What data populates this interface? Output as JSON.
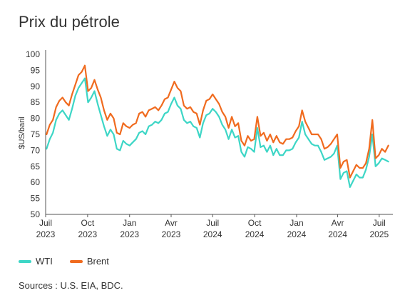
{
  "title": "Prix du pétrole",
  "source": "Sources : U.S. EIA, BDC.",
  "colors": {
    "wti": "#3dd6c6",
    "brent": "#f06b1f",
    "axis": "#555555"
  },
  "chart_data": {
    "type": "line",
    "ylabel": "$US/baril",
    "ylim": [
      50,
      100
    ],
    "yticks": [
      50,
      55,
      60,
      65,
      70,
      75,
      80,
      85,
      90,
      95,
      100
    ],
    "xlim": [
      "2023-07-01",
      "2025-07-31"
    ],
    "xticks": [
      {
        "date": "2023-07-01",
        "month": "Juil",
        "year": "2023"
      },
      {
        "date": "2023-10-01",
        "month": "Oct",
        "year": "2023"
      },
      {
        "date": "2024-01-01",
        "month": "Jan",
        "year": "2023"
      },
      {
        "date": "2024-04-01",
        "month": "Avr",
        "year": "2023"
      },
      {
        "date": "2024-07-01",
        "month": "Juil",
        "year": "2024"
      },
      {
        "date": "2024-10-01",
        "month": "Oct",
        "year": "2024"
      },
      {
        "date": "2025-01-01",
        "month": "Jan",
        "year": "2024"
      },
      {
        "date": "2025-04-01",
        "month": "Avr",
        "year": "2024"
      },
      {
        "date": "2025-07-01",
        "month": "Juil",
        "year": "2025"
      }
    ],
    "series": [
      {
        "name": "WTI",
        "color": "#3dd6c6",
        "points": [
          [
            "2023-07-03",
            70.5
          ],
          [
            "2023-07-10",
            73.5
          ],
          [
            "2023-07-17",
            75.5
          ],
          [
            "2023-07-24",
            79.5
          ],
          [
            "2023-07-31",
            81.5
          ],
          [
            "2023-08-07",
            82.5
          ],
          [
            "2023-08-14",
            81.0
          ],
          [
            "2023-08-21",
            79.5
          ],
          [
            "2023-08-28",
            83.0
          ],
          [
            "2023-09-04",
            87.0
          ],
          [
            "2023-09-11",
            89.5
          ],
          [
            "2023-09-18",
            91.0
          ],
          [
            "2023-09-25",
            92.5
          ],
          [
            "2023-10-02",
            85.0
          ],
          [
            "2023-10-09",
            86.5
          ],
          [
            "2023-10-16",
            88.5
          ],
          [
            "2023-10-23",
            84.5
          ],
          [
            "2023-10-30",
            81.0
          ],
          [
            "2023-11-06",
            77.5
          ],
          [
            "2023-11-13",
            74.5
          ],
          [
            "2023-11-20",
            76.5
          ],
          [
            "2023-11-27",
            75.0
          ],
          [
            "2023-12-04",
            70.5
          ],
          [
            "2023-12-11",
            70.0
          ],
          [
            "2023-12-18",
            73.0
          ],
          [
            "2023-12-25",
            72.0
          ],
          [
            "2024-01-01",
            71.5
          ],
          [
            "2024-01-08",
            72.5
          ],
          [
            "2024-01-15",
            73.5
          ],
          [
            "2024-01-22",
            75.5
          ],
          [
            "2024-01-29",
            76.0
          ],
          [
            "2024-02-05",
            75.0
          ],
          [
            "2024-02-12",
            77.5
          ],
          [
            "2024-02-19",
            78.0
          ],
          [
            "2024-02-26",
            79.0
          ],
          [
            "2024-03-04",
            78.5
          ],
          [
            "2024-03-11",
            79.5
          ],
          [
            "2024-03-18",
            81.5
          ],
          [
            "2024-03-25",
            82.0
          ],
          [
            "2024-04-01",
            84.5
          ],
          [
            "2024-04-08",
            86.5
          ],
          [
            "2024-04-15",
            84.0
          ],
          [
            "2024-04-22",
            83.0
          ],
          [
            "2024-04-29",
            79.5
          ],
          [
            "2024-05-06",
            78.5
          ],
          [
            "2024-05-13",
            79.0
          ],
          [
            "2024-05-20",
            77.5
          ],
          [
            "2024-05-27",
            77.0
          ],
          [
            "2024-06-03",
            74.0
          ],
          [
            "2024-06-10",
            78.5
          ],
          [
            "2024-06-17",
            81.0
          ],
          [
            "2024-06-24",
            81.5
          ],
          [
            "2024-07-01",
            83.0
          ],
          [
            "2024-07-08",
            82.0
          ],
          [
            "2024-07-15",
            80.5
          ],
          [
            "2024-07-22",
            78.0
          ],
          [
            "2024-07-29",
            76.5
          ],
          [
            "2024-08-05",
            73.5
          ],
          [
            "2024-08-12",
            76.5
          ],
          [
            "2024-08-19",
            74.0
          ],
          [
            "2024-08-26",
            74.5
          ],
          [
            "2024-09-02",
            69.5
          ],
          [
            "2024-09-09",
            68.0
          ],
          [
            "2024-09-16",
            71.0
          ],
          [
            "2024-09-23",
            70.5
          ],
          [
            "2024-09-30",
            69.5
          ],
          [
            "2024-10-07",
            77.0
          ],
          [
            "2024-10-14",
            71.0
          ],
          [
            "2024-10-21",
            71.5
          ],
          [
            "2024-10-28",
            69.5
          ],
          [
            "2024-11-04",
            71.5
          ],
          [
            "2024-11-11",
            68.5
          ],
          [
            "2024-11-18",
            70.5
          ],
          [
            "2024-11-25",
            68.5
          ],
          [
            "2024-12-02",
            68.5
          ],
          [
            "2024-12-09",
            70.0
          ],
          [
            "2024-12-16",
            70.0
          ],
          [
            "2024-12-23",
            70.5
          ],
          [
            "2024-12-30",
            72.5
          ],
          [
            "2025-01-06",
            74.0
          ],
          [
            "2025-01-13",
            79.0
          ],
          [
            "2025-01-20",
            75.0
          ],
          [
            "2025-01-27",
            73.5
          ],
          [
            "2025-02-03",
            72.0
          ],
          [
            "2025-02-10",
            71.5
          ],
          [
            "2025-02-17",
            71.5
          ],
          [
            "2025-02-24",
            69.5
          ],
          [
            "2025-03-03",
            67.0
          ],
          [
            "2025-03-10",
            67.5
          ],
          [
            "2025-03-17",
            68.0
          ],
          [
            "2025-03-24",
            69.0
          ],
          [
            "2025-03-31",
            71.5
          ],
          [
            "2025-04-07",
            61.0
          ],
          [
            "2025-04-14",
            63.0
          ],
          [
            "2025-04-21",
            63.5
          ],
          [
            "2025-04-28",
            58.5
          ],
          [
            "2025-05-05",
            60.5
          ],
          [
            "2025-05-12",
            62.5
          ],
          [
            "2025-05-19",
            61.5
          ],
          [
            "2025-05-26",
            61.5
          ],
          [
            "2025-06-02",
            64.0
          ],
          [
            "2025-06-09",
            68.0
          ],
          [
            "2025-06-16",
            75.0
          ],
          [
            "2025-06-23",
            65.0
          ],
          [
            "2025-06-30",
            66.0
          ],
          [
            "2025-07-07",
            67.5
          ],
          [
            "2025-07-14",
            67.0
          ],
          [
            "2025-07-21",
            66.5
          ]
        ]
      },
      {
        "name": "Brent",
        "color": "#f06b1f",
        "points": [
          [
            "2023-07-03",
            75.0
          ],
          [
            "2023-07-10",
            78.0
          ],
          [
            "2023-07-17",
            79.5
          ],
          [
            "2023-07-24",
            83.5
          ],
          [
            "2023-07-31",
            85.5
          ],
          [
            "2023-08-07",
            86.5
          ],
          [
            "2023-08-14",
            85.0
          ],
          [
            "2023-08-21",
            84.0
          ],
          [
            "2023-08-28",
            87.5
          ],
          [
            "2023-09-04",
            90.5
          ],
          [
            "2023-09-11",
            93.5
          ],
          [
            "2023-09-18",
            94.5
          ],
          [
            "2023-09-25",
            96.5
          ],
          [
            "2023-10-02",
            88.5
          ],
          [
            "2023-10-09",
            89.5
          ],
          [
            "2023-10-16",
            92.0
          ],
          [
            "2023-10-23",
            89.0
          ],
          [
            "2023-10-30",
            86.5
          ],
          [
            "2023-11-06",
            82.5
          ],
          [
            "2023-11-13",
            79.5
          ],
          [
            "2023-11-20",
            81.5
          ],
          [
            "2023-11-27",
            80.0
          ],
          [
            "2023-12-04",
            75.5
          ],
          [
            "2023-12-11",
            75.0
          ],
          [
            "2023-12-18",
            78.5
          ],
          [
            "2023-12-25",
            77.5
          ],
          [
            "2024-01-01",
            77.0
          ],
          [
            "2024-01-08",
            78.0
          ],
          [
            "2024-01-15",
            78.5
          ],
          [
            "2024-01-22",
            81.5
          ],
          [
            "2024-01-29",
            82.0
          ],
          [
            "2024-02-05",
            80.5
          ],
          [
            "2024-02-12",
            82.5
          ],
          [
            "2024-02-19",
            83.0
          ],
          [
            "2024-02-26",
            83.5
          ],
          [
            "2024-03-04",
            82.5
          ],
          [
            "2024-03-11",
            84.0
          ],
          [
            "2024-03-18",
            86.0
          ],
          [
            "2024-03-25",
            86.5
          ],
          [
            "2024-04-01",
            89.0
          ],
          [
            "2024-04-08",
            91.5
          ],
          [
            "2024-04-15",
            89.5
          ],
          [
            "2024-04-22",
            88.5
          ],
          [
            "2024-04-29",
            84.0
          ],
          [
            "2024-05-06",
            83.0
          ],
          [
            "2024-05-13",
            83.5
          ],
          [
            "2024-05-20",
            82.0
          ],
          [
            "2024-05-27",
            81.5
          ],
          [
            "2024-06-03",
            78.0
          ],
          [
            "2024-06-10",
            82.5
          ],
          [
            "2024-06-17",
            85.5
          ],
          [
            "2024-06-24",
            86.0
          ],
          [
            "2024-07-01",
            87.5
          ],
          [
            "2024-07-08",
            86.0
          ],
          [
            "2024-07-15",
            84.5
          ],
          [
            "2024-07-22",
            82.0
          ],
          [
            "2024-07-29",
            80.5
          ],
          [
            "2024-08-05",
            77.0
          ],
          [
            "2024-08-12",
            80.5
          ],
          [
            "2024-08-19",
            77.5
          ],
          [
            "2024-08-26",
            78.5
          ],
          [
            "2024-09-02",
            73.0
          ],
          [
            "2024-09-09",
            71.5
          ],
          [
            "2024-09-16",
            74.5
          ],
          [
            "2024-09-23",
            73.0
          ],
          [
            "2024-09-30",
            73.5
          ],
          [
            "2024-10-07",
            80.5
          ],
          [
            "2024-10-14",
            74.5
          ],
          [
            "2024-10-21",
            75.5
          ],
          [
            "2024-10-28",
            73.0
          ],
          [
            "2024-11-04",
            75.0
          ],
          [
            "2024-11-11",
            72.5
          ],
          [
            "2024-11-18",
            74.5
          ],
          [
            "2024-11-25",
            72.5
          ],
          [
            "2024-12-02",
            72.0
          ],
          [
            "2024-12-09",
            73.5
          ],
          [
            "2024-12-16",
            73.5
          ],
          [
            "2024-12-23",
            74.0
          ],
          [
            "2024-12-30",
            76.0
          ],
          [
            "2025-01-06",
            77.5
          ],
          [
            "2025-01-13",
            82.5
          ],
          [
            "2025-01-20",
            79.0
          ],
          [
            "2025-01-27",
            77.0
          ],
          [
            "2025-02-03",
            75.0
          ],
          [
            "2025-02-10",
            75.0
          ],
          [
            "2025-02-17",
            75.0
          ],
          [
            "2025-02-24",
            73.5
          ],
          [
            "2025-03-03",
            70.5
          ],
          [
            "2025-03-10",
            71.0
          ],
          [
            "2025-03-17",
            72.0
          ],
          [
            "2025-03-24",
            73.5
          ],
          [
            "2025-03-31",
            75.0
          ],
          [
            "2025-04-07",
            64.5
          ],
          [
            "2025-04-14",
            66.5
          ],
          [
            "2025-04-21",
            67.0
          ],
          [
            "2025-04-28",
            61.5
          ],
          [
            "2025-05-05",
            63.5
          ],
          [
            "2025-05-12",
            65.5
          ],
          [
            "2025-05-19",
            64.5
          ],
          [
            "2025-05-26",
            64.5
          ],
          [
            "2025-06-02",
            66.0
          ],
          [
            "2025-06-09",
            70.5
          ],
          [
            "2025-06-16",
            79.5
          ],
          [
            "2025-06-23",
            67.5
          ],
          [
            "2025-06-30",
            68.5
          ],
          [
            "2025-07-07",
            70.5
          ],
          [
            "2025-07-14",
            69.5
          ],
          [
            "2025-07-21",
            71.5
          ]
        ]
      }
    ]
  }
}
